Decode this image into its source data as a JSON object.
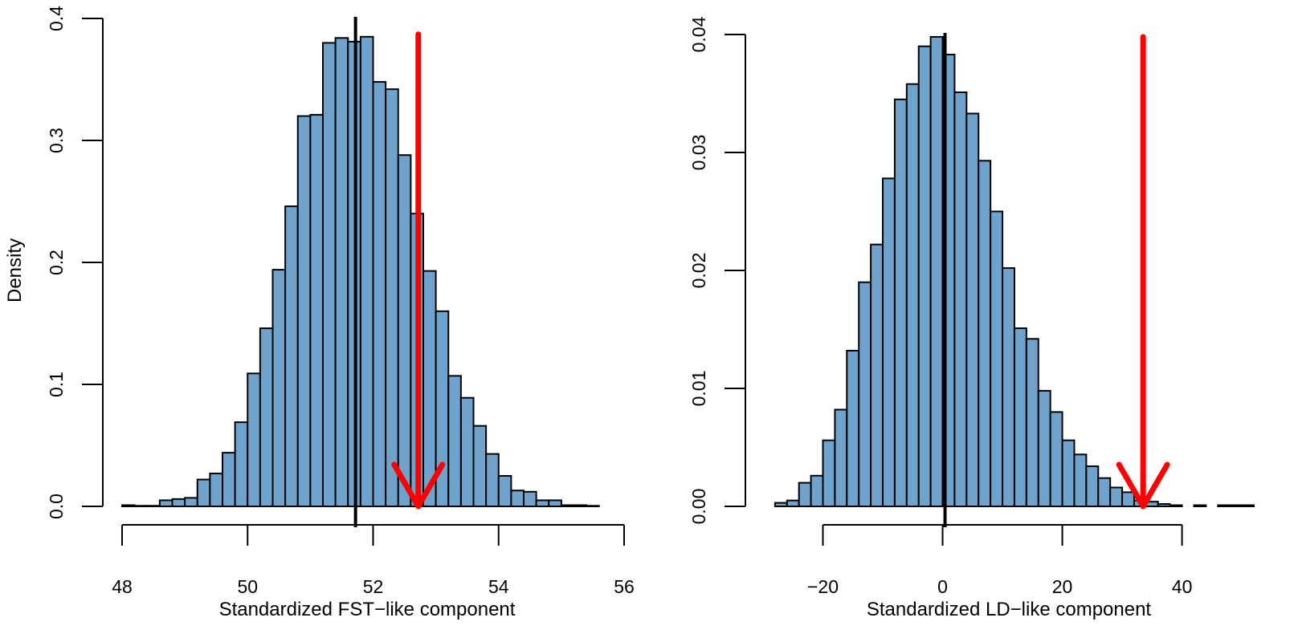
{
  "figure": {
    "colors": {
      "bar_fill": "#6fa3cc",
      "bar_stroke": "#000000",
      "arrow": "#ff0000",
      "mean_line": "#000000"
    }
  },
  "chart_data": [
    {
      "type": "bar",
      "title": "",
      "xlabel": "Standardized FST−like component",
      "ylabel": "Density",
      "xlim": [
        48,
        56
      ],
      "ylim": [
        0,
        0.4
      ],
      "x_ticks": [
        48,
        50,
        52,
        54,
        56
      ],
      "x_tick_labels": [
        "48",
        "50",
        "52",
        "54",
        "56"
      ],
      "y_ticks": [
        0.0,
        0.1,
        0.2,
        0.3,
        0.4
      ],
      "y_tick_labels": [
        "0.0",
        "0.1",
        "0.2",
        "0.3",
        "0.4"
      ],
      "bin_start": 48.0,
      "bin_width": 0.2,
      "values": [
        0.001,
        0.0005,
        0.0005,
        0.005,
        0.006,
        0.007,
        0.022,
        0.027,
        0.044,
        0.069,
        0.109,
        0.146,
        0.194,
        0.246,
        0.32,
        0.321,
        0.38,
        0.384,
        0.381,
        0.385,
        0.348,
        0.342,
        0.288,
        0.24,
        0.193,
        0.16,
        0.107,
        0.089,
        0.066,
        0.043,
        0.025,
        0.013,
        0.012,
        0.005,
        0.005,
        0.001,
        0.001,
        0.0005
      ],
      "mean_line_x": 51.72,
      "observed_arrow": {
        "x": 52.72,
        "y_top": 0.387,
        "y_tip": 0.0
      },
      "grid": false
    },
    {
      "type": "bar",
      "title": "",
      "xlabel": "Standardized LD−like component",
      "ylabel": "",
      "xlim": [
        -30,
        52
      ],
      "ylim": [
        0,
        0.04
      ],
      "x_ticks": [
        -20,
        0,
        20,
        40
      ],
      "x_tick_labels": [
        "−20",
        "0",
        "20",
        "40"
      ],
      "y_ticks": [
        0.0,
        0.01,
        0.02,
        0.03,
        0.04
      ],
      "y_tick_labels": [
        "0.00",
        "0.01",
        "0.02",
        "0.03",
        "0.04"
      ],
      "bin_start": -28,
      "bin_width": 2,
      "values": [
        0.0003,
        0.0005,
        0.002,
        0.0026,
        0.0056,
        0.0082,
        0.0132,
        0.019,
        0.0222,
        0.0278,
        0.0345,
        0.0358,
        0.039,
        0.0398,
        0.0383,
        0.0351,
        0.0333,
        0.0293,
        0.025,
        0.0202,
        0.0151,
        0.0142,
        0.0098,
        0.008,
        0.0056,
        0.0044,
        0.0034,
        0.0024,
        0.0016,
        0.0012,
        0.0005,
        0.0004,
        0.0002,
        0.0001,
        0.0,
        0.0001,
        0.0,
        0.0001,
        0.0001,
        0.0001
      ],
      "mean_line_x": 0.4,
      "observed_arrow": {
        "x": 33.5,
        "y_top": 0.0398,
        "y_tip": 0.0
      },
      "grid": false
    }
  ]
}
